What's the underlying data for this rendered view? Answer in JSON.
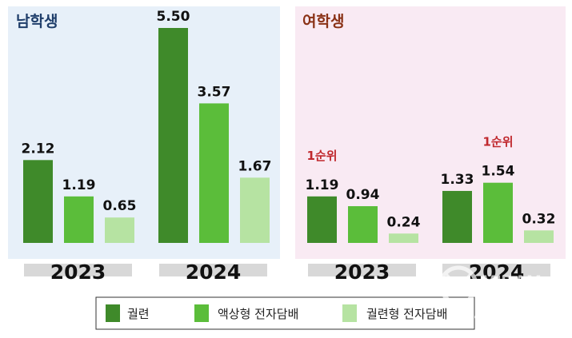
{
  "colors": {
    "male_bg": "#e7f0f9",
    "female_bg": "#f9eaf3",
    "male_title": "#1f3e6b",
    "female_title": "#8a3216",
    "year_bar": "#d8d8d8",
    "cigarette": "#3f8a2a",
    "liquid_ecig": "#5bbd3a",
    "heated_tobacco": "#b6e3a2",
    "rank_label": "#c0282d"
  },
  "legend": {
    "items": [
      {
        "label": "궐련",
        "color": "#3f8a2a"
      },
      {
        "label": "액상형 전자담배",
        "color": "#5bbd3a"
      },
      {
        "label": "궐련형 전자담배",
        "color": "#b6e3a2"
      }
    ]
  },
  "watermark": {
    "brand_line1": "MIDAM",
    "brand_line2": "TIMES",
    "tagline": "good news, good people"
  },
  "chart_data": [
    {
      "type": "bar",
      "title": "남학생",
      "categories": [
        "2023",
        "2024"
      ],
      "series": [
        {
          "name": "궐련",
          "values": [
            2.12,
            5.5
          ]
        },
        {
          "name": "액상형 전자담배",
          "values": [
            1.19,
            3.57
          ]
        },
        {
          "name": "궐련형 전자담배",
          "values": [
            0.65,
            1.67
          ]
        }
      ],
      "value_labels": [
        [
          "2.12",
          "1.19",
          "0.65"
        ],
        [
          "5.50",
          "3.57",
          "1.67"
        ]
      ],
      "annotations": [],
      "ylim": [
        0,
        5.8
      ],
      "grid": false
    },
    {
      "type": "bar",
      "title": "여학생",
      "categories": [
        "2023",
        "2024"
      ],
      "series": [
        {
          "name": "궐련",
          "values": [
            1.19,
            1.33
          ]
        },
        {
          "name": "액상형 전자담배",
          "values": [
            0.94,
            1.54
          ]
        },
        {
          "name": "궐련형 전자담배",
          "values": [
            0.24,
            0.32
          ]
        }
      ],
      "value_labels": [
        [
          "1.19",
          "0.94",
          "0.24"
        ],
        [
          "1.33",
          "1.54",
          "0.32"
        ]
      ],
      "annotations": [
        {
          "category": "2023",
          "series": "궐련",
          "text": "1순위"
        },
        {
          "category": "2024",
          "series": "액상형 전자담배",
          "text": "1순위"
        }
      ],
      "ylim": [
        0,
        5.8
      ],
      "grid": false
    }
  ]
}
